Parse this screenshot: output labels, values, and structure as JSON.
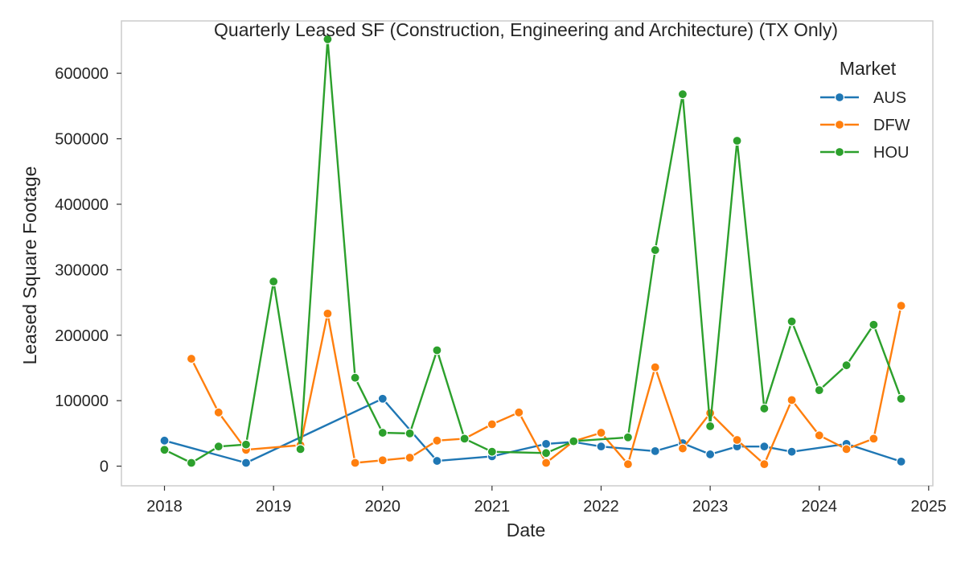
{
  "chart_data": {
    "type": "line",
    "title": "Quarterly Leased SF (Construction, Engineering and Architecture) (TX Only)",
    "xlabel": "Date",
    "ylabel": "Leased Square Footage",
    "x_ticks": [
      "2018",
      "2019",
      "2020",
      "2021",
      "2022",
      "2023",
      "2024",
      "2025"
    ],
    "y_ticks": [
      "0",
      "100000",
      "200000",
      "300000",
      "400000",
      "500000",
      "600000"
    ],
    "xlim": [
      "2017-08-10",
      "2025-01-15"
    ],
    "ylim": [
      -30000,
      680000
    ],
    "grid": true,
    "legend": {
      "title": "Market",
      "position": "top-right"
    },
    "series": [
      {
        "name": "AUS",
        "color": "#1f77b4",
        "points": [
          {
            "x": "2018-01-01",
            "y": 39000
          },
          {
            "x": "2018-10-01",
            "y": 5000
          },
          {
            "x": "2020-01-01",
            "y": 103000
          },
          {
            "x": "2020-07-01",
            "y": 8000
          },
          {
            "x": "2021-01-01",
            "y": 15000
          },
          {
            "x": "2021-07-01",
            "y": 34000
          },
          {
            "x": "2021-10-01",
            "y": 37000
          },
          {
            "x": "2022-01-01",
            "y": 30000
          },
          {
            "x": "2022-07-01",
            "y": 23000
          },
          {
            "x": "2022-10-01",
            "y": 35000
          },
          {
            "x": "2023-01-01",
            "y": 18000
          },
          {
            "x": "2023-04-01",
            "y": 30000
          },
          {
            "x": "2023-07-01",
            "y": 30000
          },
          {
            "x": "2023-10-01",
            "y": 22000
          },
          {
            "x": "2024-04-01",
            "y": 34000
          },
          {
            "x": "2024-10-01",
            "y": 7000
          }
        ]
      },
      {
        "name": "DFW",
        "color": "#ff7f0e",
        "points": [
          {
            "x": "2018-04-01",
            "y": 164000
          },
          {
            "x": "2018-07-01",
            "y": 82000
          },
          {
            "x": "2018-10-01",
            "y": 25000
          },
          {
            "x": "2019-04-01",
            "y": 32000
          },
          {
            "x": "2019-07-01",
            "y": 233000
          },
          {
            "x": "2019-10-01",
            "y": 5000
          },
          {
            "x": "2020-01-01",
            "y": 9000
          },
          {
            "x": "2020-04-01",
            "y": 13000
          },
          {
            "x": "2020-07-01",
            "y": 39000
          },
          {
            "x": "2020-10-01",
            "y": 42000
          },
          {
            "x": "2021-01-01",
            "y": 64000
          },
          {
            "x": "2021-04-01",
            "y": 82000
          },
          {
            "x": "2021-07-01",
            "y": 5000
          },
          {
            "x": "2021-10-01",
            "y": 38000
          },
          {
            "x": "2022-01-01",
            "y": 51000
          },
          {
            "x": "2022-04-01",
            "y": 3000
          },
          {
            "x": "2022-07-01",
            "y": 151000
          },
          {
            "x": "2022-10-01",
            "y": 27000
          },
          {
            "x": "2023-01-01",
            "y": 81000
          },
          {
            "x": "2023-04-01",
            "y": 40000
          },
          {
            "x": "2023-07-01",
            "y": 3000
          },
          {
            "x": "2023-10-01",
            "y": 101000
          },
          {
            "x": "2024-01-01",
            "y": 47000
          },
          {
            "x": "2024-04-01",
            "y": 26000
          },
          {
            "x": "2024-07-01",
            "y": 42000
          },
          {
            "x": "2024-10-01",
            "y": 245000
          }
        ]
      },
      {
        "name": "HOU",
        "color": "#2ca02c",
        "points": [
          {
            "x": "2018-01-01",
            "y": 25000
          },
          {
            "x": "2018-04-01",
            "y": 5000
          },
          {
            "x": "2018-07-01",
            "y": 30000
          },
          {
            "x": "2018-10-01",
            "y": 33000
          },
          {
            "x": "2019-01-01",
            "y": 282000
          },
          {
            "x": "2019-04-01",
            "y": 26000
          },
          {
            "x": "2019-07-01",
            "y": 652000
          },
          {
            "x": "2019-10-01",
            "y": 135000
          },
          {
            "x": "2020-01-01",
            "y": 51000
          },
          {
            "x": "2020-04-01",
            "y": 50000
          },
          {
            "x": "2020-07-01",
            "y": 177000
          },
          {
            "x": "2020-10-01",
            "y": 42000
          },
          {
            "x": "2021-01-01",
            "y": 22000
          },
          {
            "x": "2021-07-01",
            "y": 20000
          },
          {
            "x": "2021-10-01",
            "y": 38000
          },
          {
            "x": "2022-04-01",
            "y": 44000
          },
          {
            "x": "2022-07-01",
            "y": 330000
          },
          {
            "x": "2022-10-01",
            "y": 568000
          },
          {
            "x": "2023-01-01",
            "y": 61000
          },
          {
            "x": "2023-04-01",
            "y": 497000
          },
          {
            "x": "2023-07-01",
            "y": 88000
          },
          {
            "x": "2023-10-01",
            "y": 221000
          },
          {
            "x": "2024-01-01",
            "y": 116000
          },
          {
            "x": "2024-04-01",
            "y": 154000
          },
          {
            "x": "2024-07-01",
            "y": 216000
          },
          {
            "x": "2024-10-01",
            "y": 103000
          }
        ]
      }
    ]
  }
}
